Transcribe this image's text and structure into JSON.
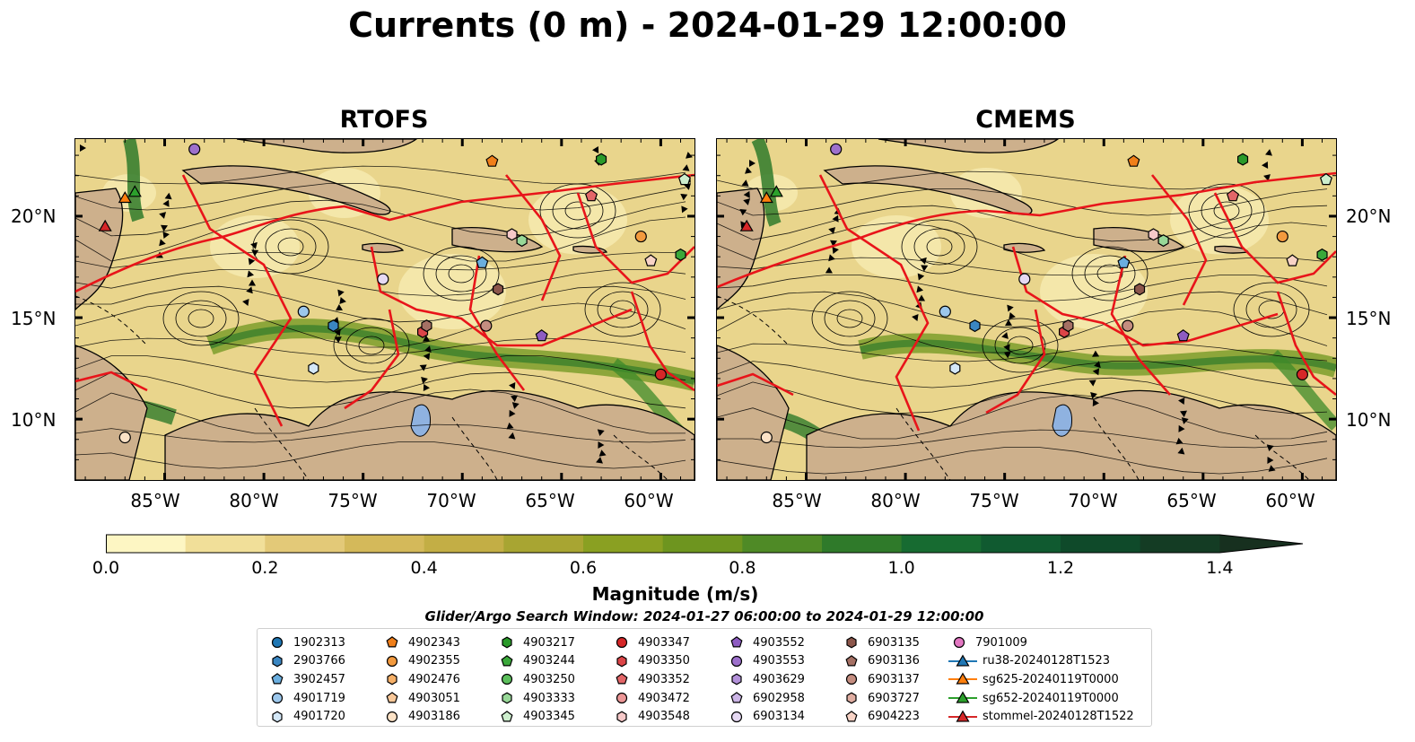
{
  "title": "Currents (0 m) - 2024-01-29 12:00:00",
  "panels": [
    {
      "title": "RTOFS"
    },
    {
      "title": "CMEMS"
    }
  ],
  "axes": {
    "y_ticks": [
      "20°N",
      "15°N",
      "10°N"
    ],
    "x_ticks": [
      "85°W",
      "80°W",
      "75°W",
      "70°W",
      "65°W",
      "60°W"
    ]
  },
  "colorbar": {
    "label": "Magnitude (m/s)",
    "ticks": [
      "0.0",
      "0.2",
      "0.4",
      "0.6",
      "0.8",
      "1.0",
      "1.2",
      "1.4"
    ],
    "range": [
      0,
      1.5
    ],
    "colors": [
      "#fdf6c3",
      "#f1df99",
      "#e3c978",
      "#d4b95a",
      "#c3ae45",
      "#a8a532",
      "#8aa022",
      "#6e951f",
      "#4f8a26",
      "#2f7a2a",
      "#176b31",
      "#105a30",
      "#0f4a2a",
      "#143c24",
      "#17301f"
    ],
    "extend": "max"
  },
  "search_window": "Glider/Argo Search Window: 2024-01-27 06:00:00 to 2024-01-29 12:00:00",
  "legend": [
    [
      {
        "label": "1902313",
        "marker": "circle",
        "color": "#1f77b4"
      },
      {
        "label": "2903766",
        "marker": "hexagon",
        "color": "#3a86c2"
      },
      {
        "label": "3902457",
        "marker": "pentagon",
        "color": "#6aaedf"
      },
      {
        "label": "4901719",
        "marker": "circle",
        "color": "#9cc7ec"
      },
      {
        "label": "4901720",
        "marker": "hexagon",
        "color": "#d4e8f8"
      }
    ],
    [
      {
        "label": "4902343",
        "marker": "pentagon",
        "color": "#f07f1a"
      },
      {
        "label": "4902355",
        "marker": "circle",
        "color": "#f39a3e"
      },
      {
        "label": "4902476",
        "marker": "hexagon",
        "color": "#f6b068"
      },
      {
        "label": "4903051",
        "marker": "pentagon",
        "color": "#f9c899"
      },
      {
        "label": "4903186",
        "marker": "circle",
        "color": "#fce2c6"
      }
    ],
    [
      {
        "label": "4903217",
        "marker": "hexagon",
        "color": "#2a9a2a"
      },
      {
        "label": "4903244",
        "marker": "pentagon",
        "color": "#3aa83a"
      },
      {
        "label": "4903250",
        "marker": "circle",
        "color": "#5cbf5c"
      },
      {
        "label": "4903333",
        "marker": "hexagon",
        "color": "#98d898"
      },
      {
        "label": "4903345",
        "marker": "pentagon",
        "color": "#cdeecd"
      }
    ],
    [
      {
        "label": "4903347",
        "marker": "circle",
        "color": "#d62728"
      },
      {
        "label": "4903350",
        "marker": "hexagon",
        "color": "#dc4548"
      },
      {
        "label": "4903352",
        "marker": "pentagon",
        "color": "#e36668"
      },
      {
        "label": "4903472",
        "marker": "circle",
        "color": "#ec9696"
      },
      {
        "label": "4903548",
        "marker": "hexagon",
        "color": "#f6c9c9"
      }
    ],
    [
      {
        "label": "4903552",
        "marker": "pentagon",
        "color": "#8e5cc2"
      },
      {
        "label": "4903553",
        "marker": "circle",
        "color": "#9d70cc"
      },
      {
        "label": "4903629",
        "marker": "hexagon",
        "color": "#b391da"
      },
      {
        "label": "6902958",
        "marker": "pentagon",
        "color": "#ccb5e6"
      },
      {
        "label": "6903134",
        "marker": "circle",
        "color": "#e6d9f3"
      }
    ],
    [
      {
        "label": "6903135",
        "marker": "hexagon",
        "color": "#8c564b"
      },
      {
        "label": "6903136",
        "marker": "pentagon",
        "color": "#a57064"
      },
      {
        "label": "6903137",
        "marker": "circle",
        "color": "#c48d80"
      },
      {
        "label": "6903727",
        "marker": "hexagon",
        "color": "#e0aea2"
      },
      {
        "label": "6904223",
        "marker": "pentagon",
        "color": "#f8d3c6"
      }
    ],
    [
      {
        "label": "7901009",
        "marker": "circle",
        "color": "#e377c2"
      },
      {
        "label": "ru38-20240128T1523",
        "marker": "triangle-line",
        "color": "#1f77b4"
      },
      {
        "label": "sg625-20240119T0000",
        "marker": "triangle-line",
        "color": "#ff7f0e"
      },
      {
        "label": "sg652-20240119T0000",
        "marker": "triangle-line",
        "color": "#2ca02c"
      },
      {
        "label": "stommel-20240128T1522",
        "marker": "triangle-line",
        "color": "#d62728"
      }
    ]
  ]
}
